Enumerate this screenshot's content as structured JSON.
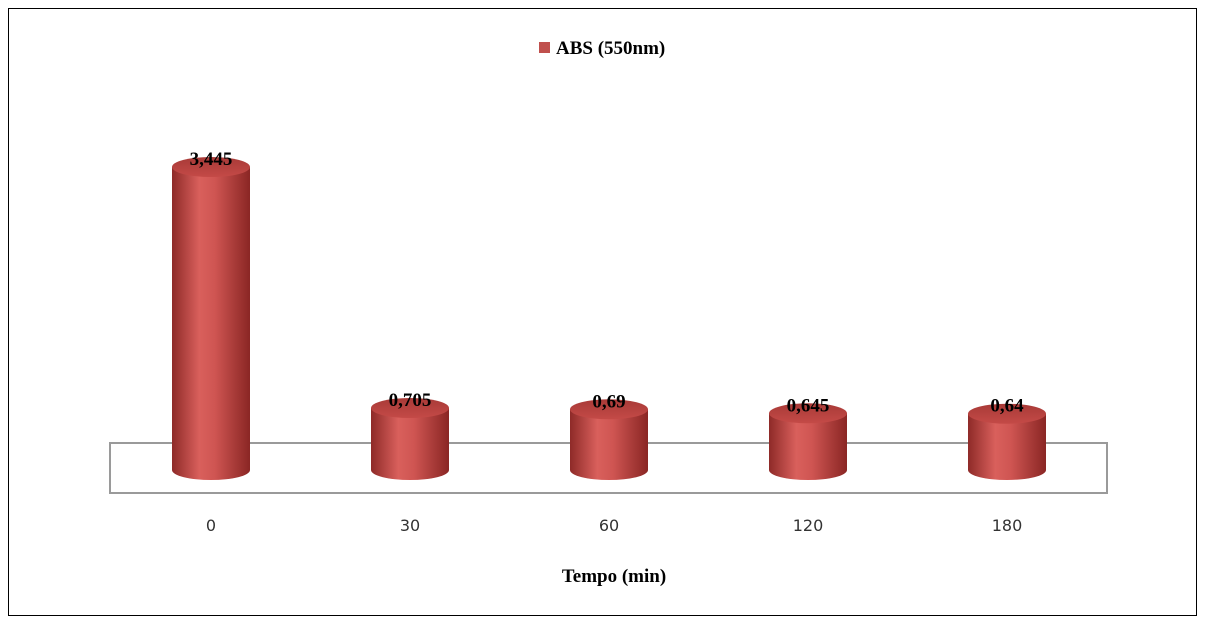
{
  "chart_data": {
    "type": "bar",
    "categories": [
      "0",
      "30",
      "60",
      "120",
      "180"
    ],
    "series": [
      {
        "name": "ABS (550nm)",
        "values": [
          3.445,
          0.705,
          0.69,
          0.645,
          0.64
        ],
        "color": "#c0504d"
      }
    ],
    "data_labels": [
      "3,445",
      "0,705",
      "0,69",
      "0,645",
      "0,64"
    ],
    "xlabel": "Tempo (min)",
    "ylabel": "",
    "legend_position": "top-center",
    "grid": false,
    "bar_style": "3d-cylinder"
  }
}
